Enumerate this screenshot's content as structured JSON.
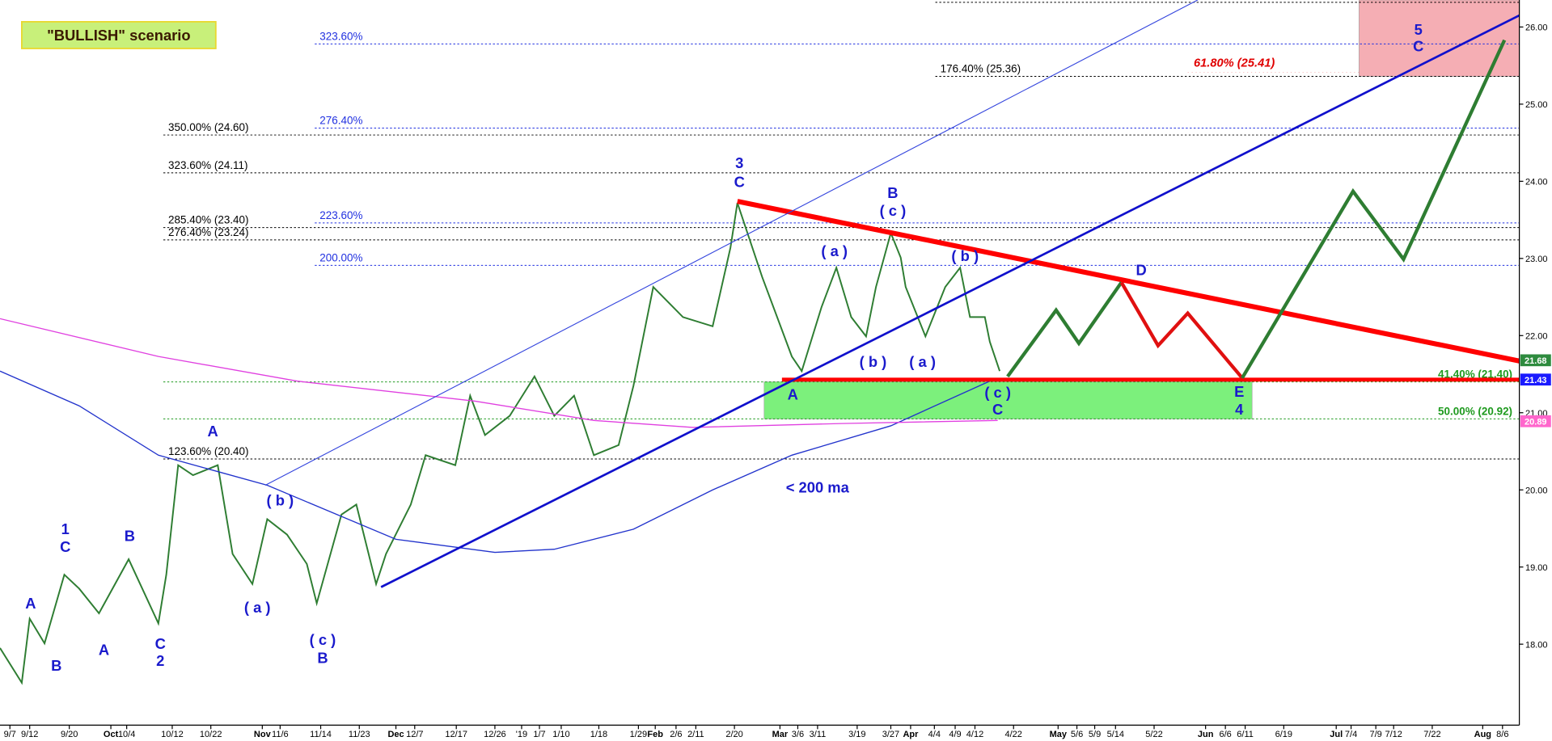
{
  "chart_data": {
    "type": "line",
    "title": "\"BULLISH\" scenario",
    "xlim": [
      0,
      307
    ],
    "ylim": [
      16.95,
      26.35
    ],
    "yticks": [
      {
        "value": 18,
        "label": "18.00"
      },
      {
        "value": 19,
        "label": "19.00"
      },
      {
        "value": 20,
        "label": "20.00"
      },
      {
        "value": 21,
        "label": "21.00"
      },
      {
        "value": 22,
        "label": "22.00"
      },
      {
        "value": 23,
        "label": "23.00"
      },
      {
        "value": 24,
        "label": "24.00"
      },
      {
        "value": 25,
        "label": "25.00"
      },
      {
        "value": 26,
        "label": "26.00"
      }
    ],
    "xticks": [
      {
        "value": 2,
        "label": "9/7"
      },
      {
        "value": 6,
        "label": "9/12"
      },
      {
        "value": 14,
        "label": "9/20"
      },
      {
        "value": 22.4,
        "label": "Oct"
      },
      {
        "value": 25.6,
        "label": "10/4"
      },
      {
        "value": 34.8,
        "label": "10/12"
      },
      {
        "value": 42.6,
        "label": "10/22"
      },
      {
        "value": 53,
        "label": "Nov"
      },
      {
        "value": 56.6,
        "label": "11/6"
      },
      {
        "value": 64.8,
        "label": "11/14"
      },
      {
        "value": 72.6,
        "label": "11/23"
      },
      {
        "value": 80,
        "label": "Dec"
      },
      {
        "value": 83.8,
        "label": "12/7"
      },
      {
        "value": 92.2,
        "label": "12/17"
      },
      {
        "value": 100,
        "label": "12/26"
      },
      {
        "value": 105.4,
        "label": "'19"
      },
      {
        "value": 109,
        "label": "1/7"
      },
      {
        "value": 113.4,
        "label": "1/10"
      },
      {
        "value": 121,
        "label": "1/18"
      },
      {
        "value": 129,
        "label": "1/29"
      },
      {
        "value": 132.4,
        "label": "Feb"
      },
      {
        "value": 136.6,
        "label": "2/6"
      },
      {
        "value": 140.6,
        "label": "2/11"
      },
      {
        "value": 148.4,
        "label": "2/20"
      },
      {
        "value": 157.6,
        "label": "Mar"
      },
      {
        "value": 161.2,
        "label": "3/6"
      },
      {
        "value": 165.2,
        "label": "3/11"
      },
      {
        "value": 173.2,
        "label": "3/19"
      },
      {
        "value": 180,
        "label": "3/27"
      },
      {
        "value": 184,
        "label": "Apr"
      },
      {
        "value": 188.8,
        "label": "4/4"
      },
      {
        "value": 193,
        "label": "4/9"
      },
      {
        "value": 197,
        "label": "4/12"
      },
      {
        "value": 204.8,
        "label": "4/22"
      },
      {
        "value": 213.8,
        "label": "May"
      },
      {
        "value": 217.6,
        "label": "5/6"
      },
      {
        "value": 221.2,
        "label": "5/9"
      },
      {
        "value": 225.4,
        "label": "5/14"
      },
      {
        "value": 233.2,
        "label": "5/22"
      },
      {
        "value": 243.6,
        "label": "Jun"
      },
      {
        "value": 247.6,
        "label": "6/6"
      },
      {
        "value": 251.6,
        "label": "6/11"
      },
      {
        "value": 259.4,
        "label": "6/19"
      },
      {
        "value": 270,
        "label": "Jul"
      },
      {
        "value": 273,
        "label": "7/4"
      },
      {
        "value": 278,
        "label": "7/9"
      },
      {
        "value": 281.6,
        "label": "7/12"
      },
      {
        "value": 289.4,
        "label": "7/22"
      },
      {
        "value": 299.6,
        "label": "Aug"
      },
      {
        "value": 303.6,
        "label": "8/6"
      }
    ],
    "series": [
      {
        "color": "#2e7d32",
        "x": [
          0,
          4.4,
          6,
          9,
          13,
          16,
          20,
          26,
          32,
          33.6,
          36,
          39,
          44,
          47,
          51,
          54,
          58,
          62,
          64,
          69,
          72,
          76,
          78,
          83,
          86,
          92,
          95,
          98,
          103,
          108,
          112,
          116,
          120,
          125,
          128,
          132,
          138,
          144,
          147.6,
          149,
          154,
          160,
          162,
          166,
          169,
          172,
          175,
          177,
          180,
          182,
          183,
          187,
          191,
          194,
          196,
          199,
          200,
          202
        ],
        "values": [
          17.95,
          17.5,
          18.33,
          18.01,
          18.9,
          18.72,
          18.4,
          19.1,
          18.27,
          18.9,
          20.32,
          20.19,
          20.32,
          19.17,
          18.78,
          19.62,
          19.42,
          19.04,
          18.53,
          19.68,
          19.81,
          18.78,
          19.17,
          19.81,
          20.45,
          20.32,
          21.22,
          20.71,
          20.96,
          21.47,
          20.96,
          21.22,
          20.45,
          20.58,
          21.35,
          22.63,
          22.24,
          22.12,
          23.14,
          23.72,
          22.76,
          21.73,
          21.54,
          22.37,
          22.88,
          22.24,
          21.99,
          22.63,
          23.33,
          23.01,
          22.63,
          21.99,
          22.63,
          22.88,
          22.24,
          22.24,
          21.92,
          21.54
        ]
      },
      {
        "color": "#2233cc",
        "x": [
          0,
          16,
          32,
          54,
          80,
          100,
          112,
          128,
          144,
          160,
          180,
          200
        ],
        "values": [
          21.54,
          21.09,
          20.45,
          20.06,
          19.36,
          19.19,
          19.23,
          19.49,
          20.0,
          20.45,
          20.83,
          21.41
        ]
      },
      {
        "color": "#e040e0",
        "x": [
          0,
          32,
          60,
          96,
          120,
          140,
          170,
          201.6
        ],
        "values": [
          22.22,
          21.73,
          21.41,
          21.15,
          20.9,
          20.81,
          20.86,
          20.9
        ]
      }
    ],
    "trendlines": [
      {
        "color": "#ff0000",
        "x": [
          149,
          307
        ],
        "values": [
          23.74,
          21.67
        ]
      },
      {
        "color": "#ff0000",
        "x": [
          158,
          307
        ],
        "values": [
          21.43,
          21.43
        ]
      },
      {
        "color": "#1010cc",
        "x": [
          77,
          307
        ],
        "values": [
          18.74,
          26.15
        ]
      },
      {
        "color": "#3344dd",
        "x": [
          53.6,
          242
        ],
        "values": [
          20.06,
          26.35
        ]
      },
      {
        "color": "#2e7d32",
        "x": [
          203.6,
          213.4,
          218,
          226.6
        ],
        "values": [
          21.47,
          22.33,
          21.9,
          22.69
        ]
      },
      {
        "color": "#e01010",
        "x": [
          226.6,
          234,
          240,
          251
        ],
        "values": [
          22.69,
          21.87,
          22.29,
          21.45
        ]
      },
      {
        "color": "#2e7d32",
        "x": [
          251,
          273.4,
          283.6,
          304
        ],
        "values": [
          21.45,
          23.87,
          22.99,
          25.83
        ]
      }
    ],
    "zones": [
      {
        "color": "#66ee66",
        "x": [
          154.4,
          253
        ],
        "values": [
          20.92,
          21.4
        ]
      },
      {
        "color": "#f4a0a8",
        "x": [
          274.6,
          307
        ],
        "values": [
          25.36,
          26.35
        ]
      }
    ],
    "levels": [
      {
        "value": 26.32,
        "color": "#000000"
      },
      {
        "label": "323.60%",
        "value": 25.78,
        "color": "#2030e0"
      },
      {
        "label": "176.40% (25.36)",
        "value": 25.36,
        "color": "#000000"
      },
      {
        "label": "61.80% (25.41)",
        "value": 25.41,
        "color": "#e00000"
      },
      {
        "label": "350.00% (24.60)",
        "value": 24.6,
        "color": "#000000"
      },
      {
        "label": "276.40%",
        "value": 24.69,
        "color": "#2030e0"
      },
      {
        "label": "323.60% (24.11)",
        "value": 24.11,
        "color": "#000000"
      },
      {
        "label": "285.40% (23.40)",
        "value": 23.4,
        "color": "#000000"
      },
      {
        "label": "276.40% (23.24)",
        "value": 23.24,
        "color": "#000000"
      },
      {
        "label": "223.60%",
        "value": 23.46,
        "color": "#2030e0"
      },
      {
        "label": "200.00%",
        "value": 22.91,
        "color": "#2030e0"
      },
      {
        "label": "41.40% (21.40)",
        "value": 21.4,
        "color": "#1e9a1e"
      },
      {
        "label": "50.00% (20.92)",
        "value": 20.92,
        "color": "#1e9a1e"
      },
      {
        "label": "123.60% (20.40)",
        "value": 20.4,
        "color": "#000000"
      }
    ],
    "price_tags": [
      {
        "value": 21.68,
        "color": "#2e8b3e"
      },
      {
        "value": 21.43,
        "color": "#1a1aff"
      },
      {
        "value": 20.89,
        "color": "#ff66cc"
      }
    ],
    "annotations": [
      "1",
      "C",
      "A",
      "B",
      "B",
      "A",
      "C",
      "2",
      "A",
      "( b )",
      "( a )",
      "( c )",
      "B",
      "3",
      "C",
      "A",
      "( a )",
      "( b )",
      "B",
      "( c )",
      "( a )",
      "( b )",
      "( c )",
      "C",
      "E",
      "4",
      "D",
      "5",
      "C",
      "< 200 ma"
    ]
  }
}
